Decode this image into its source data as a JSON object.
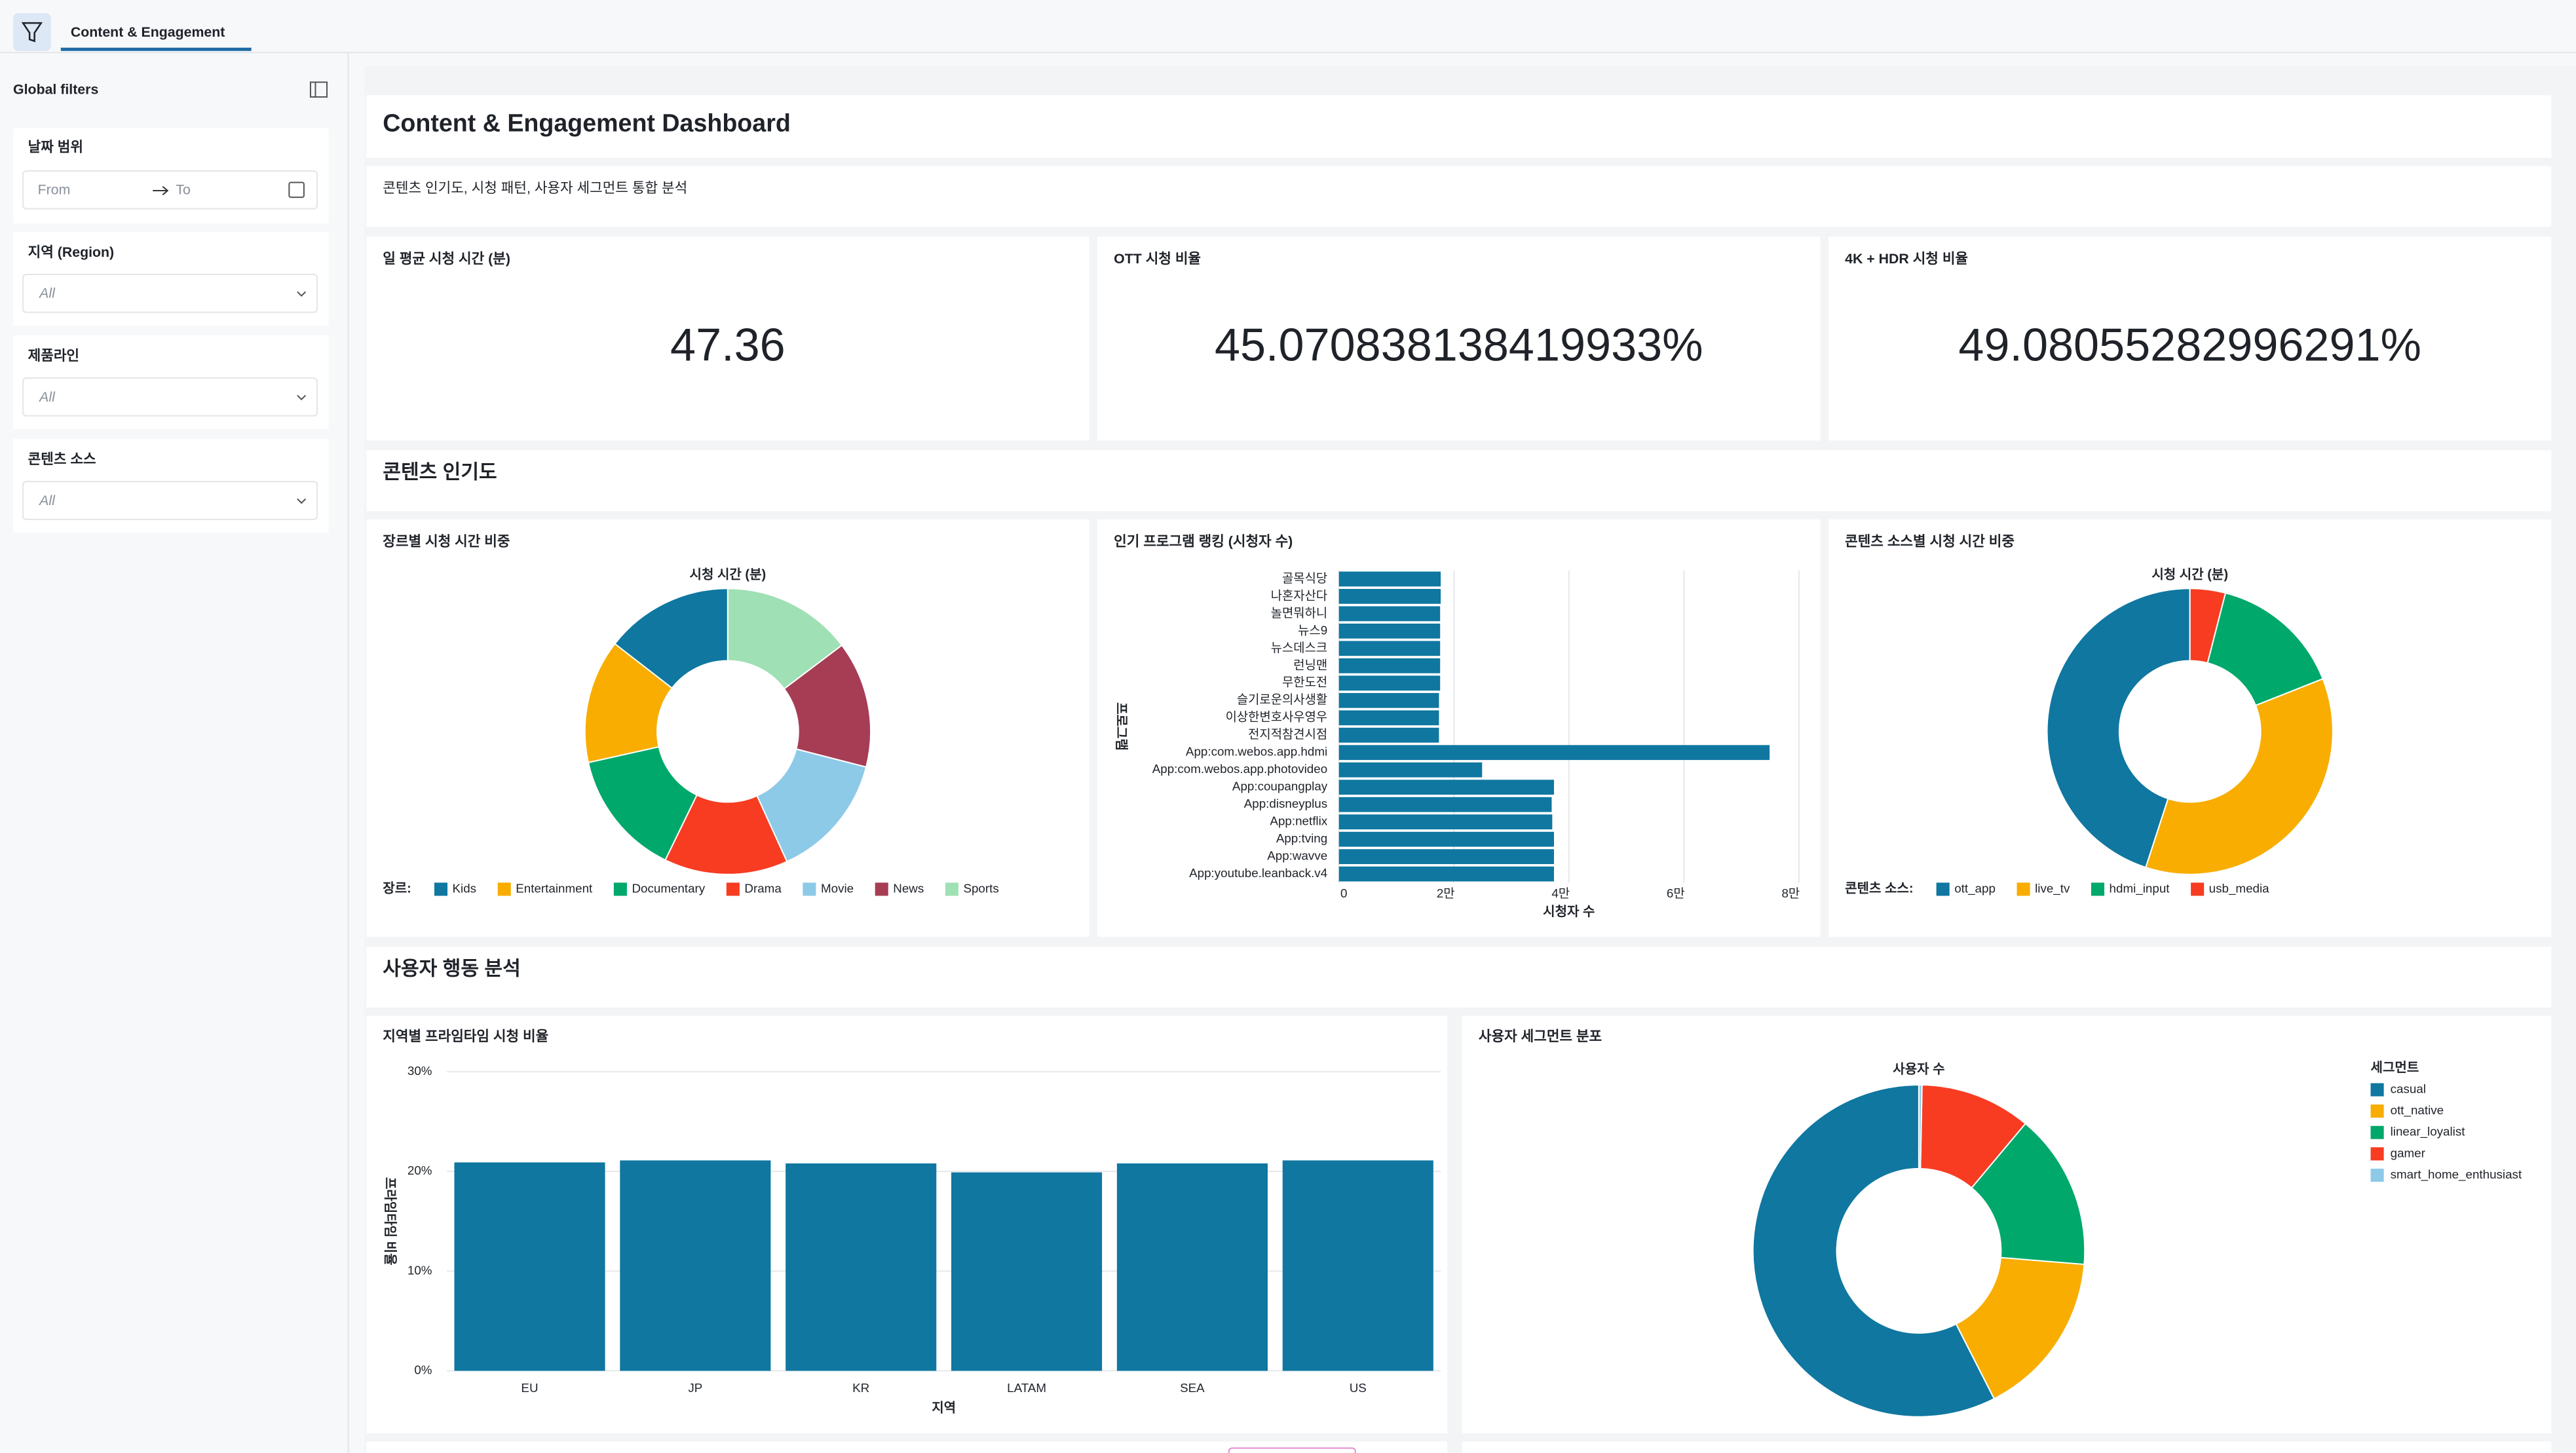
{
  "tab": "Content & Engagement",
  "sidebar": {
    "title": "Global filters",
    "filters": [
      {
        "label": "날짜 범위",
        "from": "From",
        "to": "To"
      },
      {
        "label": "지역 (Region)",
        "value": "All"
      },
      {
        "label": "제품라인",
        "value": "All"
      },
      {
        "label": "콘텐츠 소스",
        "value": "All"
      }
    ]
  },
  "header": {
    "title": "Content & Engagement Dashboard",
    "subtitle": "콘텐츠 인기도, 시청 패턴, 사용자 세그먼트 통합 분석"
  },
  "kpis": [
    {
      "label": "일 평균 시청 시간 (분)",
      "value": "47.36"
    },
    {
      "label": "OTT 시청 비율",
      "value": "45.070838138419933%"
    },
    {
      "label": "4K + HDR 시청 비율",
      "value": "49.08055282996291%"
    }
  ],
  "sections": [
    "콘텐츠 인기도",
    "사용자 행동 분석"
  ],
  "chart_data": [
    {
      "type": "donut",
      "title": "장르별 시청 시간 비중",
      "subtitle": "시청 시간 (분)",
      "legend_title": "장르:",
      "legend": "bottom",
      "categories": [
        "Kids",
        "Entertainment",
        "Documentary",
        "Drama",
        "Movie",
        "News",
        "Sports"
      ],
      "values": [
        14.5,
        14.0,
        14.3,
        14.0,
        14.2,
        14.3,
        14.7
      ],
      "colors": [
        "#0f77a0",
        "#f8ad00",
        "#00a86b",
        "#f73c22",
        "#8dcae8",
        "#a63d55",
        "#9fe0b5"
      ]
    },
    {
      "type": "hbar",
      "title": "인기 프로그램 랭킹 (시청자 수)",
      "xlabel": "시청자 수",
      "ylabel": "프로그램",
      "categories": [
        "골목식당",
        "나혼자산다",
        "놀면뭐하니",
        "뉴스9",
        "뉴스데스크",
        "런닝맨",
        "무한도전",
        "슬기로운의사생활",
        "이상한변호사우영우",
        "전지적참견시점",
        "App:com.webos.app.hdmi",
        "App:com.webos.app.photovideo",
        "App:coupangplay",
        "App:disneyplus",
        "App:netflix",
        "App:tving",
        "App:wavve",
        "App:youtube.leanback.v4"
      ],
      "values": [
        17700,
        17700,
        17600,
        17600,
        17600,
        17600,
        17600,
        17400,
        17400,
        17400,
        74900,
        24900,
        37400,
        37000,
        37100,
        37400,
        37400,
        37400
      ],
      "color": "#0f77a0",
      "xlim": [
        0,
        80000
      ],
      "xticks": [
        0,
        {
          "value": 20000,
          "label": "2만"
        },
        {
          "value": 40000,
          "label": "4만"
        },
        {
          "value": 60000,
          "label": "6만"
        },
        {
          "value": 80000,
          "label": "8만"
        }
      ],
      "grid": true
    },
    {
      "type": "donut",
      "title": "콘텐츠 소스별 시청 시간 비중",
      "subtitle": "시청 시간 (분)",
      "legend_title": "콘텐츠 소스:",
      "legend": "bottom",
      "categories": [
        "ott_app",
        "live_tv",
        "hdmi_input",
        "usb_media"
      ],
      "values": [
        45,
        36,
        15,
        4
      ],
      "colors": [
        "#0f77a0",
        "#f8ad00",
        "#00a86b",
        "#f73c22"
      ]
    },
    {
      "type": "bar",
      "title": "지역별 프라임타임 시청 비율",
      "xlabel": "지역",
      "ylabel": "프라임타임 비율",
      "categories": [
        "EU",
        "JP",
        "KR",
        "LATAM",
        "SEA",
        "US"
      ],
      "values": [
        20.9,
        21.1,
        20.8,
        19.9,
        20.8,
        21.1
      ],
      "color": "#0f77a0",
      "ylim": [
        0,
        30
      ],
      "yticks": [
        {
          "value": 0,
          "label": "0%"
        },
        {
          "value": 10,
          "label": "10%"
        },
        {
          "value": 20,
          "label": "20%"
        },
        {
          "value": 30,
          "label": "30%"
        }
      ],
      "grid": true
    },
    {
      "type": "donut",
      "title": "사용자 세그먼트 분포",
      "subtitle": "사용자 수",
      "legend_title": "세그먼트",
      "legend": "right",
      "categories": [
        "casual",
        "ott_native",
        "linear_loyalist",
        "gamer",
        "smart_home_enthusiast"
      ],
      "values": [
        575,
        162,
        152,
        108,
        3
      ],
      "colors": [
        "#0f77a0",
        "#f8ad00",
        "#00a86b",
        "#f73c22",
        "#8dcae8"
      ]
    }
  ]
}
